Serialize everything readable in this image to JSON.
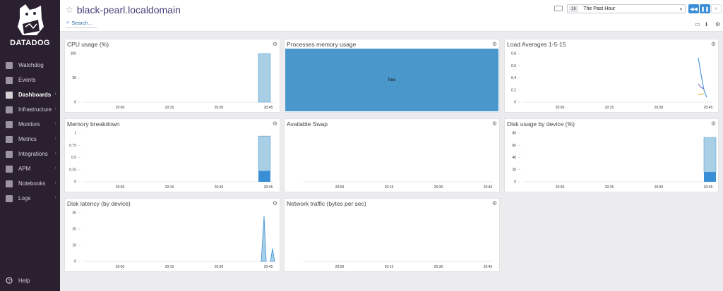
{
  "brand": {
    "name": "DATADOG"
  },
  "nav": [
    {
      "label": "Watchdog",
      "active": false,
      "chevron": false,
      "icon": "binoculars-icon"
    },
    {
      "label": "Events",
      "active": false,
      "chevron": false,
      "icon": "events-list-icon"
    },
    {
      "label": "Dashboards",
      "active": true,
      "chevron": true,
      "icon": "chart-area-icon"
    },
    {
      "label": "Infrastructure",
      "active": false,
      "chevron": true,
      "icon": "infrastructure-icon"
    },
    {
      "label": "Monitors",
      "active": false,
      "chevron": true,
      "icon": "monitor-alert-icon"
    },
    {
      "label": "Metrics",
      "active": false,
      "chevron": true,
      "icon": "metrics-gauge-icon"
    },
    {
      "label": "Integrations",
      "active": false,
      "chevron": true,
      "icon": "puzzle-icon"
    },
    {
      "label": "APM",
      "active": false,
      "chevron": true,
      "icon": "apm-icon"
    },
    {
      "label": "Notebooks",
      "active": false,
      "chevron": true,
      "icon": "notebook-icon"
    },
    {
      "label": "Logs",
      "active": false,
      "chevron": true,
      "icon": "logs-icon"
    }
  ],
  "help": {
    "label": "Help"
  },
  "header": {
    "title": "black-pearl.localdomain",
    "search_label": "Search...",
    "time_badge": "1h",
    "time_label": "The Past Hour"
  },
  "x_ticks": [
    "20:00",
    "20:15",
    "20:30",
    "20:45"
  ],
  "widgets": [
    {
      "title": "CPU usage (%)"
    },
    {
      "title": "Processes memory usage",
      "heat_label": "free"
    },
    {
      "title": "Load Averages 1-5-15"
    },
    {
      "title": "Memory breakdown"
    },
    {
      "title": "Available Swap"
    },
    {
      "title": "Disk usage by device (%)"
    },
    {
      "title": "Disk latency (by device)"
    },
    {
      "title": "Network traffic (bytes per sec)"
    }
  ],
  "chart_data": [
    {
      "type": "bar",
      "title": "CPU usage (%)",
      "x": [
        "20:00",
        "20:15",
        "20:30",
        "20:45"
      ],
      "ylim": [
        0,
        100
      ],
      "yticks": [
        "100",
        "50",
        "0"
      ],
      "series": [
        {
          "values_at_end": [
            100
          ]
        }
      ]
    },
    {
      "type": "heatmap",
      "title": "Processes memory usage",
      "cells": [
        {
          "label": "free"
        }
      ]
    },
    {
      "type": "line",
      "title": "Load Averages 1-5-15",
      "ylim": [
        0,
        0.8
      ],
      "yticks": [
        "0.8",
        "0.6",
        "0.4",
        "0.2",
        "0"
      ],
      "series": [
        {
          "color": "#3a8ed6",
          "values_end": [
            0.73,
            0.45,
            0.2,
            0.08
          ]
        },
        {
          "color": "#8a6fb8",
          "values_end": [
            0.3,
            0.24,
            0.22
          ]
        },
        {
          "color": "#e3b23c",
          "values_end": [
            0.12,
            0.13,
            0.14
          ]
        }
      ]
    },
    {
      "type": "bar",
      "title": "Memory breakdown",
      "ylim": [
        0,
        1
      ],
      "yticks": [
        "1",
        "0.75",
        "0.5",
        "0.25",
        "0"
      ],
      "series": [
        {
          "name": "used",
          "value": 0.22
        },
        {
          "name": "free",
          "value": 0.72
        }
      ]
    },
    {
      "type": "line",
      "title": "Available Swap",
      "series": []
    },
    {
      "type": "bar",
      "title": "Disk usage by device (%)",
      "ylim": [
        0,
        80
      ],
      "yticks": [
        "80",
        "60",
        "40",
        "20",
        "0"
      ],
      "series": [
        {
          "value": 16
        },
        {
          "value": 57
        }
      ]
    },
    {
      "type": "area",
      "title": "Disk latency (by device)",
      "ylim": [
        0,
        30
      ],
      "yticks": [
        "30",
        "20",
        "10",
        "0"
      ],
      "series": [
        {
          "peaks": [
            28,
            8
          ]
        }
      ]
    },
    {
      "type": "line",
      "title": "Network traffic (bytes per sec)",
      "series": []
    }
  ]
}
